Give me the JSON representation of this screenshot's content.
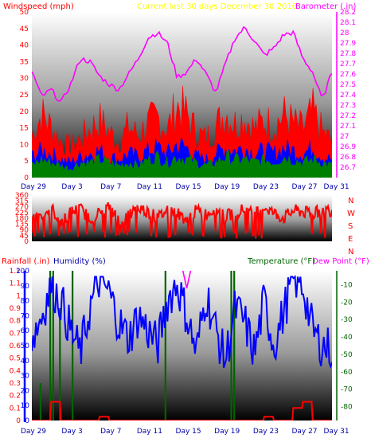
{
  "header": {
    "left_label": "Windspeed (mph)",
    "center_label": "Current last 30 days December 30 2016",
    "right_label": "Barometer (.in)"
  },
  "colors": {
    "windspeed": "#ff0000",
    "wind_avg": "#0000ff",
    "wind_low": "#008000",
    "barometer": "#ff00ff",
    "title": "#ffff00",
    "axis_text": "#ff0000",
    "humidity": "#0000ff",
    "temperature": "#006400",
    "dewpoint": "#ff00ff"
  },
  "x_ticks": [
    "Day 29",
    "Day 3",
    "Day 7",
    "Day 11",
    "Day 15",
    "Day 19",
    "Day 23",
    "Day 27",
    "Day 31"
  ],
  "direction_labels": [
    "N",
    "W",
    "S",
    "E",
    "N"
  ],
  "chart_data": [
    {
      "type": "area",
      "name": "wind-barometer",
      "title": "Current last 30 days December 30 2016",
      "ylabel": "Windspeed (mph)",
      "y2label": "Barometer (.in)",
      "ylim": [
        0,
        50
      ],
      "y2lim": [
        26.6,
        28.2
      ],
      "yticks": [
        0,
        5,
        10,
        15,
        20,
        25,
        30,
        35,
        40,
        45,
        50
      ],
      "y2ticks": [
        "26.7",
        "26.8",
        "26.9",
        "27",
        "27.1",
        "27.2",
        "27.3",
        "27.4",
        "27.5",
        "27.6",
        "27.7",
        "27.8",
        "27.9",
        "28",
        "28.1",
        "28.2"
      ],
      "series": [
        {
          "name": "Windspeed (mph)",
          "x": [
            0,
            1,
            2,
            3,
            4,
            5,
            6,
            7,
            8,
            9,
            10,
            11,
            12,
            13,
            14,
            15,
            16,
            17,
            18,
            19,
            20,
            21,
            22,
            23,
            24,
            25,
            26,
            27,
            28,
            29,
            30,
            31
          ],
          "values": [
            14,
            21,
            17,
            12,
            10,
            13,
            16,
            19,
            15,
            12,
            17,
            14,
            18,
            20,
            16,
            24,
            21,
            15,
            13,
            17,
            22,
            18,
            20,
            16,
            19,
            17,
            21,
            18,
            16,
            22,
            15,
            12
          ]
        },
        {
          "name": "Wind avg",
          "x": [
            0,
            1,
            2,
            3,
            4,
            5,
            6,
            7,
            8,
            9,
            10,
            11,
            12,
            13,
            14,
            15,
            16,
            17,
            18,
            19,
            20,
            21,
            22,
            23,
            24,
            25,
            26,
            27,
            28,
            29,
            30,
            31
          ],
          "values": [
            7,
            9,
            8,
            6,
            5,
            7,
            8,
            9,
            7,
            6,
            8,
            7,
            9,
            10,
            8,
            11,
            10,
            7,
            6,
            8,
            10,
            9,
            10,
            8,
            9,
            8,
            10,
            9,
            8,
            10,
            7,
            6
          ]
        },
        {
          "name": "Wind low",
          "x": [
            0,
            1,
            2,
            3,
            4,
            5,
            6,
            7,
            8,
            9,
            10,
            11,
            12,
            13,
            14,
            15,
            16,
            17,
            18,
            19,
            20,
            21,
            22,
            23,
            24,
            25,
            26,
            27,
            28,
            29,
            30,
            31
          ],
          "values": [
            4,
            6,
            5,
            4,
            3,
            5,
            5,
            6,
            5,
            4,
            5,
            4,
            6,
            7,
            5,
            7,
            6,
            5,
            4,
            5,
            7,
            6,
            6,
            5,
            6,
            5,
            7,
            6,
            5,
            6,
            5,
            4
          ]
        },
        {
          "name": "Barometer (.in)",
          "x": [
            0,
            1,
            2,
            3,
            4,
            5,
            6,
            7,
            8,
            9,
            10,
            11,
            12,
            13,
            14,
            15,
            16,
            17,
            18,
            19,
            20,
            21,
            22,
            23,
            24,
            25,
            26,
            27,
            28,
            29,
            30,
            31
          ],
          "values": [
            27.63,
            27.38,
            27.45,
            27.32,
            27.5,
            27.75,
            27.72,
            27.58,
            27.5,
            27.45,
            27.6,
            27.75,
            27.95,
            28.0,
            27.9,
            27.57,
            27.62,
            27.75,
            27.6,
            27.42,
            27.7,
            27.95,
            28.05,
            27.92,
            27.78,
            27.85,
            27.98,
            28.0,
            27.75,
            27.62,
            27.35,
            27.62
          ]
        }
      ]
    },
    {
      "type": "line",
      "name": "wind-direction",
      "ylim": [
        0,
        360
      ],
      "yticks": [
        0,
        45,
        90,
        135,
        180,
        225,
        270,
        315,
        360
      ],
      "series": [
        {
          "name": "Direction",
          "x": [
            0,
            1,
            2,
            3,
            4,
            5,
            6,
            7,
            8,
            9,
            10,
            11,
            12,
            13,
            14,
            15,
            16,
            17,
            18,
            19,
            20,
            21,
            22,
            23,
            24,
            25,
            26,
            27,
            28,
            29,
            30,
            31
          ],
          "values": [
            240,
            200,
            260,
            150,
            230,
            250,
            180,
            220,
            270,
            160,
            200,
            260,
            230,
            180,
            250,
            220,
            170,
            240,
            210,
            260,
            190,
            230,
            250,
            200,
            270,
            220,
            180,
            240,
            230,
            210,
            250,
            240
          ]
        }
      ]
    },
    {
      "type": "line",
      "name": "rain-humidity-temperature",
      "ylabel": "Rainfall (.in)",
      "y2label": "Temperature (°F)",
      "y3label": "Humidity (%)",
      "y4label": "Dew Point (°F)",
      "ylim": [
        0,
        1.2
      ],
      "yticks": [
        "0",
        "0.1",
        "0.2",
        "0.3",
        "0.4",
        "0.5",
        "0.6",
        "0.7",
        "0.8",
        "0.9",
        "1",
        "1.1",
        "1.2"
      ],
      "humidity_ticks": [
        0,
        10,
        20,
        30,
        40,
        50,
        60,
        70,
        80,
        90,
        100
      ],
      "temp_ticks": [
        "-10",
        "-20",
        "-30",
        "-40",
        "-50",
        "-60",
        "-70",
        "-80"
      ],
      "temp_lim": [
        -88,
        -2
      ],
      "series": [
        {
          "name": "Humidity (%)",
          "x": [
            0,
            1,
            2,
            3,
            4,
            5,
            6,
            7,
            8,
            9,
            10,
            11,
            12,
            13,
            14,
            15,
            16,
            17,
            18,
            19,
            20,
            21,
            22,
            23,
            24,
            25,
            26,
            27,
            28,
            29,
            30,
            31
          ],
          "values": [
            55,
            70,
            90,
            80,
            60,
            45,
            75,
            95,
            85,
            65,
            55,
            70,
            60,
            50,
            80,
            92,
            70,
            45,
            85,
            60,
            40,
            75,
            65,
            45,
            80,
            50,
            72,
            95,
            90,
            60,
            50,
            48
          ]
        },
        {
          "name": "Temperature (°F)",
          "x": [],
          "values": []
        },
        {
          "name": "Dew Point (°F)",
          "x": [
            15.6,
            16.0,
            16.4
          ],
          "values": [
            -2,
            -12,
            -2
          ]
        },
        {
          "name": "Rainfall (.in)",
          "x": [
            0,
            1,
            2,
            3,
            4,
            5,
            6,
            7,
            8,
            9,
            10,
            11,
            12,
            13,
            14,
            15,
            16,
            17,
            18,
            19,
            20,
            21,
            22,
            23,
            24,
            25,
            26,
            27,
            28,
            29,
            30,
            31
          ],
          "values": [
            0,
            0,
            0.15,
            0,
            0,
            0,
            0,
            0.03,
            0,
            0,
            0,
            0,
            0,
            0,
            0,
            0,
            0,
            0,
            0,
            0,
            0,
            0,
            0,
            0,
            0.03,
            0,
            0,
            0.1,
            0.15,
            0,
            0,
            0
          ]
        }
      ]
    }
  ]
}
